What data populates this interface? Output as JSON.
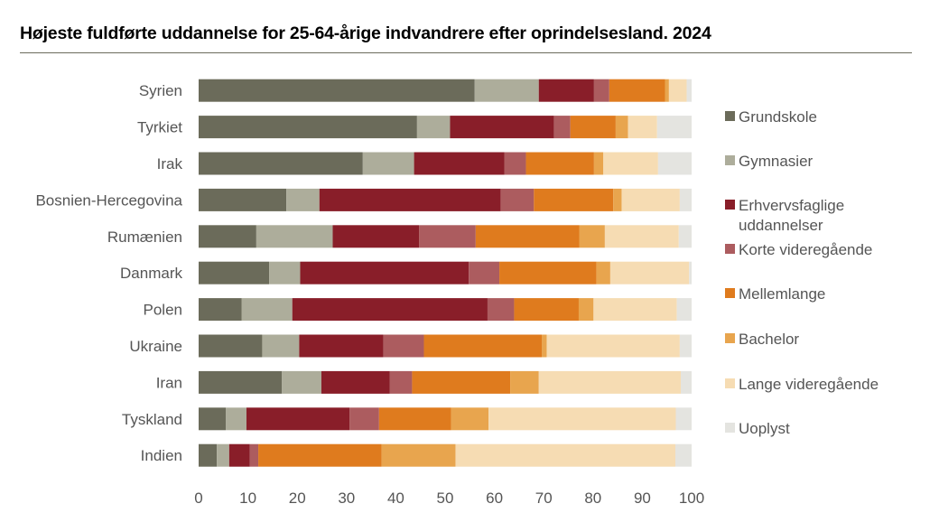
{
  "title": "Højeste fuldførte uddannelse for 25-64-årige indvandrere efter oprindelsesland. 2024",
  "chart_data": {
    "type": "bar",
    "orientation": "horizontal",
    "stacked": true,
    "title": "Højeste fuldførte uddannelse for 25-64-årige indvandrere efter oprindelsesland. 2024",
    "xlabel": "",
    "ylabel": "",
    "xlim": [
      0,
      100
    ],
    "xticks": [
      0,
      10,
      20,
      30,
      40,
      50,
      60,
      70,
      80,
      90,
      100
    ],
    "grid": false,
    "legend_position": "right",
    "categories": [
      "Syrien",
      "Tyrkiet",
      "Irak",
      "Bosnien-Hercegovina",
      "Rumænien",
      "Danmark",
      "Polen",
      "Ukraine",
      "Iran",
      "Tyskland",
      "Indien"
    ],
    "series": [
      {
        "name": "Grundskole",
        "color": "#6b6b5a",
        "values": [
          56,
          44.3,
          33.3,
          17.8,
          11.7,
          14.3,
          8.7,
          12.9,
          16.9,
          5.5,
          3.7
        ]
      },
      {
        "name": "Gymnasier",
        "color": "#adad9b",
        "values": [
          13,
          6.7,
          10.4,
          6.7,
          15.5,
          6.3,
          10.3,
          7.5,
          8.0,
          4.2,
          2.5
        ]
      },
      {
        "name": "Erhvervsfaglige uddannelser",
        "color": "#891e29",
        "values": [
          11.2,
          21.1,
          18.3,
          36.8,
          17.5,
          34.2,
          39.6,
          17.1,
          13.9,
          20.9,
          4.2
        ]
      },
      {
        "name": "Korte videregående",
        "color": "#ac5c5f",
        "values": [
          3.1,
          3.3,
          4.4,
          6.7,
          11.5,
          6.2,
          5.4,
          8.2,
          4.5,
          6.0,
          1.7
        ]
      },
      {
        "name": "Mellemlange",
        "color": "#df7b1e",
        "values": [
          11.3,
          9.2,
          13.8,
          16.1,
          21.0,
          19.7,
          13.1,
          23.9,
          19.9,
          14.6,
          25.0
        ]
      },
      {
        "name": "Bachelor",
        "color": "#e8a54e",
        "values": [
          0.8,
          2.5,
          1.9,
          1.7,
          5.2,
          2.8,
          3.0,
          1.0,
          5.8,
          7.6,
          15.0
        ]
      },
      {
        "name": "Lange videregående",
        "color": "#f6dcb3",
        "values": [
          3.6,
          5.9,
          11.1,
          11.8,
          15.0,
          16.0,
          16.9,
          27.0,
          28.8,
          38.0,
          44.6
        ]
      },
      {
        "name": "Uoplyst",
        "color": "#e4e4e0",
        "values": [
          1.0,
          7.0,
          6.8,
          2.4,
          2.6,
          0.5,
          3.0,
          2.4,
          2.2,
          3.2,
          3.3
        ]
      }
    ]
  }
}
